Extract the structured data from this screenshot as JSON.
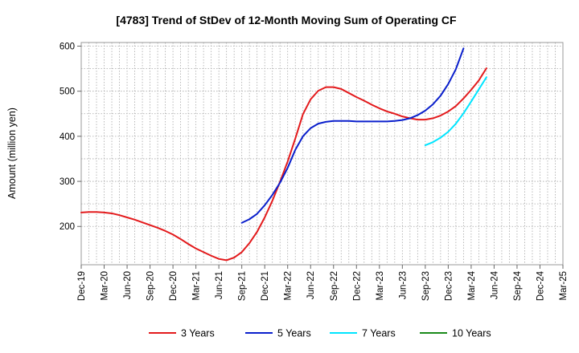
{
  "chart_data": {
    "type": "line",
    "title": "[4783]  Trend of StDev of 12-Month Moving Sum of Operating CF",
    "xlabel": "",
    "ylabel": "Amount (million yen)",
    "ylim": [
      115,
      608
    ],
    "yticks": [
      200,
      300,
      400,
      500,
      600
    ],
    "x_categories": [
      "Dec-19",
      "Jan-20",
      "Feb-20",
      "Mar-20",
      "Apr-20",
      "May-20",
      "Jun-20",
      "Jul-20",
      "Aug-20",
      "Sep-20",
      "Oct-20",
      "Nov-20",
      "Dec-20",
      "Jan-21",
      "Feb-21",
      "Mar-21",
      "Apr-21",
      "May-21",
      "Jun-21",
      "Jul-21",
      "Aug-21",
      "Sep-21",
      "Oct-21",
      "Nov-21",
      "Dec-21",
      "Jan-22",
      "Feb-22",
      "Mar-22",
      "Apr-22",
      "May-22",
      "Jun-22",
      "Jul-22",
      "Aug-22",
      "Sep-22",
      "Oct-22",
      "Nov-22",
      "Dec-22",
      "Jan-23",
      "Feb-23",
      "Mar-23",
      "Apr-23",
      "May-23",
      "Jun-23",
      "Jul-23",
      "Aug-23",
      "Sep-23",
      "Oct-23",
      "Nov-23",
      "Dec-23",
      "Jan-24",
      "Feb-24",
      "Mar-24",
      "Apr-24",
      "May-24",
      "Jun-24",
      "Jul-24",
      "Aug-24",
      "Sep-24",
      "Oct-24",
      "Nov-24",
      "Dec-24",
      "Jan-25",
      "Feb-25",
      "Mar-25"
    ],
    "tick_labels": [
      "Dec-19",
      "Mar-20",
      "Jun-20",
      "Sep-20",
      "Dec-20",
      "Mar-21",
      "Jun-21",
      "Sep-21",
      "Dec-21",
      "Mar-22",
      "Jun-22",
      "Sep-22",
      "Dec-22",
      "Mar-23",
      "Jun-23",
      "Sep-23",
      "Dec-23",
      "Mar-24",
      "Jun-24",
      "Sep-24",
      "Dec-24",
      "Mar-25"
    ],
    "grid": true,
    "legend_position": "bottom",
    "series": [
      {
        "name": "3 Years",
        "color": "#e31a1c",
        "start": "Dec-19",
        "values": [
          231,
          232,
          232,
          231,
          229,
          225,
          220,
          215,
          209,
          203,
          197,
          190,
          182,
          172,
          161,
          151,
          143,
          135,
          128,
          125,
          131,
          143,
          163,
          188,
          220,
          257,
          299,
          344,
          395,
          449,
          482,
          501,
          509,
          509,
          505,
          496,
          487,
          479,
          470,
          462,
          455,
          450,
          444,
          440,
          437,
          437,
          440,
          446,
          455,
          467,
          484,
          503,
          524,
          551
        ]
      },
      {
        "name": "5 Years",
        "color": "#0a1fcc",
        "start": "Sep-21",
        "values": [
          208,
          216,
          228,
          247,
          270,
          297,
          330,
          370,
          400,
          418,
          428,
          432,
          434,
          434,
          434,
          433,
          433,
          433,
          433,
          433,
          434,
          436,
          440,
          447,
          457,
          471,
          490,
          516,
          549,
          595
        ]
      },
      {
        "name": "7 Years",
        "color": "#00e5ff",
        "start": "Sep-23",
        "values": [
          380,
          387,
          397,
          410,
          428,
          451,
          477,
          504,
          531
        ]
      },
      {
        "name": "10 Years",
        "color": "#1a8a1a",
        "start": "",
        "values": []
      }
    ]
  }
}
